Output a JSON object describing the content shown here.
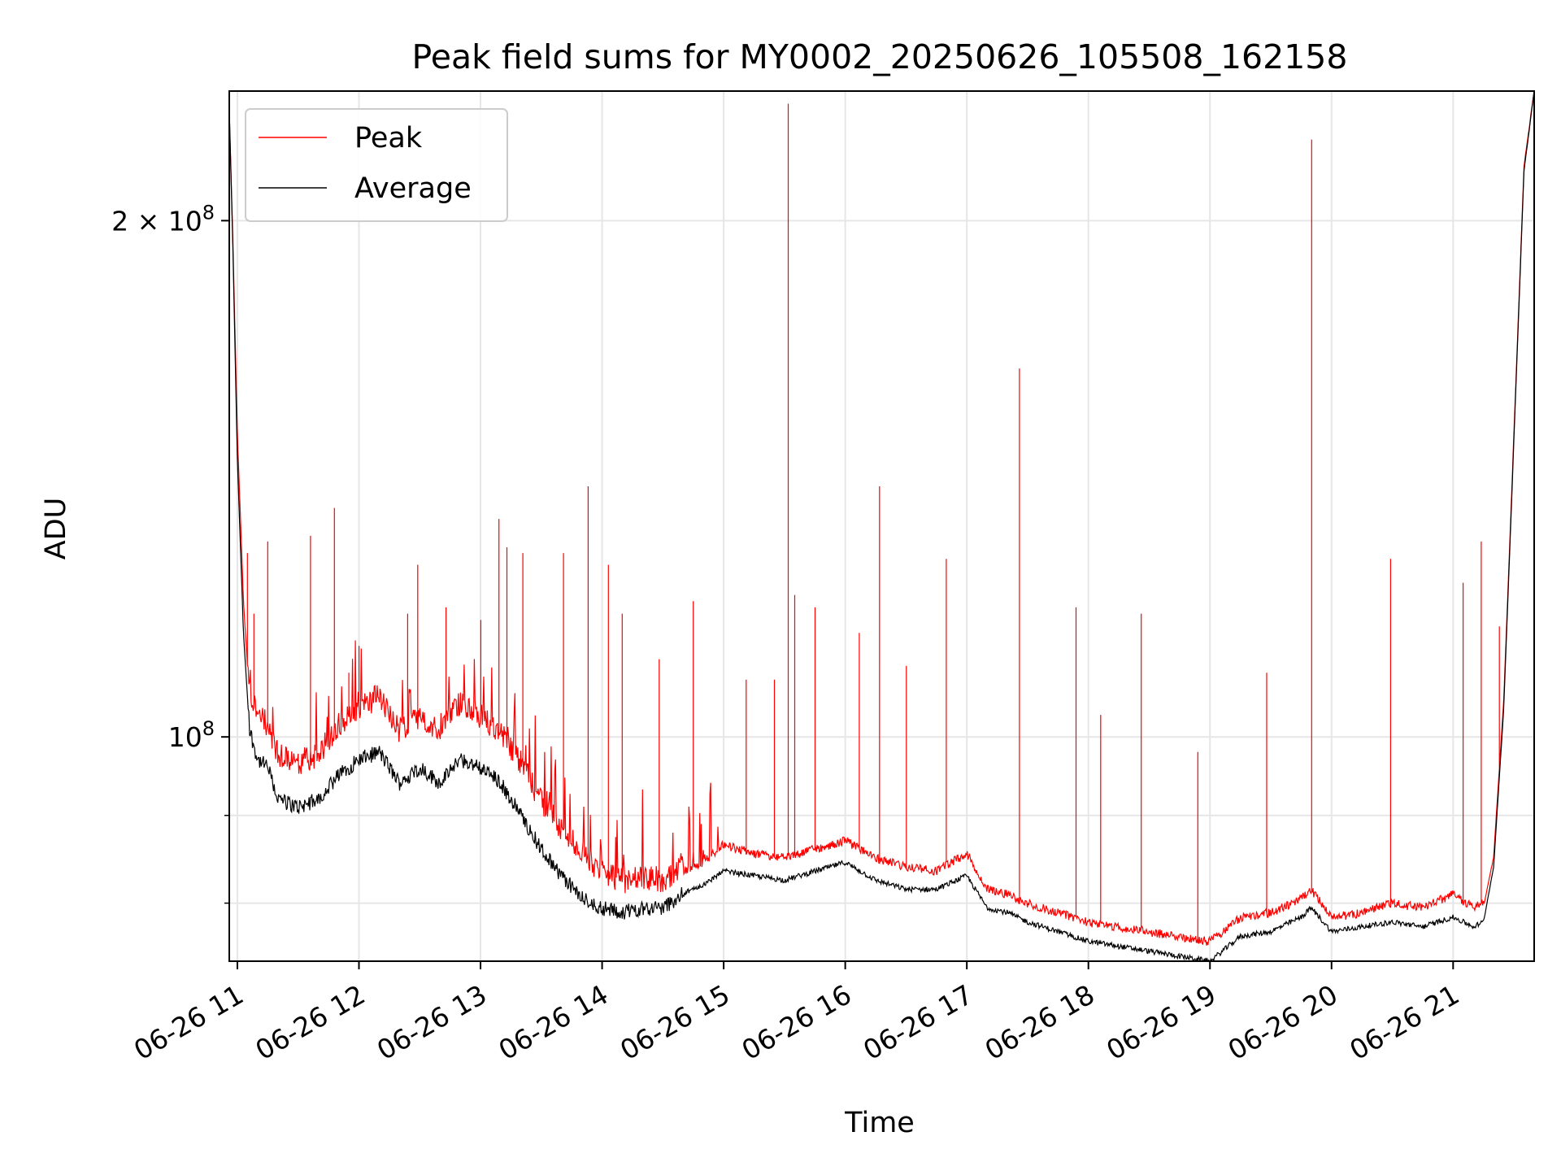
{
  "chart_data": {
    "type": "line",
    "title": "Peak field sums for MY0002_20250626_105508_162158",
    "xlabel": "Time",
    "ylabel": "ADU",
    "x_axis": {
      "kind": "time",
      "range": [
        "06-26 10:56",
        "06-26 21:40"
      ],
      "ticks": [
        "06-26 11",
        "06-26 12",
        "06-26 13",
        "06-26 14",
        "06-26 15",
        "06-26 16",
        "06-26 17",
        "06-26 18",
        "06-26 19",
        "06-26 20",
        "06-26 21"
      ]
    },
    "y_axis": {
      "scale": "log",
      "range": [
        74000000,
        238000000
      ],
      "major_ticks": [
        {
          "value": 100000000,
          "mantissa": "",
          "exponent": "8",
          "label": "10^8"
        },
        {
          "value": 200000000,
          "mantissa": "2",
          "exponent": "8",
          "label": "2 × 10^8"
        }
      ],
      "minor_ticks": [
        60000000,
        70000000,
        80000000,
        90000000,
        100000000,
        200000000
      ]
    },
    "grid": true,
    "legend": {
      "placement": "upper-left",
      "entries": [
        "Peak",
        "Average"
      ]
    },
    "series": [
      {
        "name": "Peak",
        "color": "#ff0000",
        "time": [
          "10:56",
          "10:58",
          "11:00",
          "11:03",
          "11:06",
          "11:10",
          "11:15",
          "11:20",
          "11:30",
          "11:40",
          "11:50",
          "12:00",
          "12:10",
          "12:20",
          "12:30",
          "12:40",
          "12:50",
          "13:00",
          "13:10",
          "13:20",
          "13:30",
          "13:40",
          "13:50",
          "14:00",
          "14:10",
          "14:20",
          "14:30",
          "14:40",
          "14:50",
          "15:00",
          "15:15",
          "15:30",
          "15:45",
          "16:00",
          "16:15",
          "16:30",
          "16:45",
          "17:00",
          "17:10",
          "17:20",
          "17:30",
          "17:45",
          "18:00",
          "18:15",
          "18:30",
          "18:45",
          "19:00",
          "19:15",
          "19:30",
          "19:45",
          "19:50",
          "20:00",
          "20:15",
          "20:30",
          "20:45",
          "21:00",
          "21:10",
          "21:15",
          "21:20",
          "21:25",
          "21:30",
          "21:35",
          "21:40"
        ],
        "values": [
          232000000,
          190000000,
          150000000,
          120000000,
          105000000,
          101000000,
          100000000,
          96000000,
          95000000,
          96000000,
          100000000,
          102000000,
          104000000,
          99000000,
          101000000,
          99000000,
          103000000,
          101000000,
          99000000,
          95000000,
          90000000,
          87000000,
          84000000,
          82000000,
          81000000,
          81500000,
          81000000,
          83000000,
          84000000,
          86000000,
          85000000,
          84500000,
          85500000,
          86500000,
          84500000,
          83500000,
          83000000,
          85000000,
          81000000,
          80500000,
          79500000,
          78500000,
          77500000,
          77000000,
          76500000,
          76000000,
          75500000,
          78000000,
          78500000,
          80000000,
          81000000,
          78000000,
          78500000,
          79500000,
          79000000,
          80500000,
          79000000,
          79500000,
          85000000,
          105000000,
          150000000,
          215000000,
          238000000
        ],
        "spikes": [
          {
            "time": "11:05",
            "value": 128000000
          },
          {
            "time": "11:08",
            "value": 118000000
          },
          {
            "time": "11:15",
            "value": 130000000
          },
          {
            "time": "11:36",
            "value": 131000000
          },
          {
            "time": "11:48",
            "value": 136000000
          },
          {
            "time": "11:55",
            "value": 109000000
          },
          {
            "time": "12:00",
            "value": 113000000
          },
          {
            "time": "12:24",
            "value": 118000000
          },
          {
            "time": "12:29",
            "value": 126000000
          },
          {
            "time": "12:43",
            "value": 119000000
          },
          {
            "time": "13:00",
            "value": 117000000
          },
          {
            "time": "13:09",
            "value": 134000000
          },
          {
            "time": "13:13",
            "value": 129000000
          },
          {
            "time": "13:21",
            "value": 128000000
          },
          {
            "time": "13:41",
            "value": 128000000
          },
          {
            "time": "13:53",
            "value": 140000000
          },
          {
            "time": "14:03",
            "value": 126000000
          },
          {
            "time": "14:10",
            "value": 118000000
          },
          {
            "time": "14:28",
            "value": 111000000
          },
          {
            "time": "14:45",
            "value": 120000000
          },
          {
            "time": "15:11",
            "value": 108000000
          },
          {
            "time": "15:25",
            "value": 108000000
          },
          {
            "time": "15:32",
            "value": 234000000
          },
          {
            "time": "15:35",
            "value": 121000000
          },
          {
            "time": "15:45",
            "value": 119000000
          },
          {
            "time": "16:07",
            "value": 115000000
          },
          {
            "time": "16:17",
            "value": 140000000
          },
          {
            "time": "16:30",
            "value": 110000000
          },
          {
            "time": "16:50",
            "value": 127000000
          },
          {
            "time": "17:26",
            "value": 164000000
          },
          {
            "time": "17:54",
            "value": 119000000
          },
          {
            "time": "18:06",
            "value": 103000000
          },
          {
            "time": "18:26",
            "value": 118000000
          },
          {
            "time": "18:54",
            "value": 98000000
          },
          {
            "time": "19:28",
            "value": 109000000
          },
          {
            "time": "19:50",
            "value": 223000000
          },
          {
            "time": "20:29",
            "value": 127000000
          },
          {
            "time": "21:05",
            "value": 123000000
          },
          {
            "time": "21:14",
            "value": 130000000
          },
          {
            "time": "21:23",
            "value": 116000000
          }
        ]
      },
      {
        "name": "Average",
        "color": "#000000",
        "time": [
          "10:56",
          "10:58",
          "11:00",
          "11:03",
          "11:06",
          "11:10",
          "11:15",
          "11:20",
          "11:30",
          "11:40",
          "11:50",
          "12:00",
          "12:10",
          "12:20",
          "12:30",
          "12:40",
          "12:50",
          "13:00",
          "13:10",
          "13:20",
          "13:30",
          "13:40",
          "13:50",
          "14:00",
          "14:10",
          "14:20",
          "14:30",
          "14:40",
          "14:50",
          "15:00",
          "15:15",
          "15:30",
          "15:45",
          "16:00",
          "16:15",
          "16:30",
          "16:45",
          "17:00",
          "17:10",
          "17:20",
          "17:30",
          "17:45",
          "18:00",
          "18:15",
          "18:30",
          "18:45",
          "19:00",
          "19:15",
          "19:30",
          "19:45",
          "19:50",
          "20:00",
          "20:15",
          "20:30",
          "20:45",
          "21:00",
          "21:10",
          "21:15",
          "21:20",
          "21:25",
          "21:30",
          "21:35",
          "21:40"
        ],
        "values": [
          232000000,
          188000000,
          145000000,
          115000000,
          101000000,
          97000000,
          96000000,
          92000000,
          91000000,
          92000000,
          95000000,
          97000000,
          98000000,
          94000000,
          96000000,
          94000000,
          97000000,
          96000000,
          94000000,
          90000000,
          86000000,
          83000000,
          80500000,
          79500000,
          79000000,
          79500000,
          79500000,
          81000000,
          82000000,
          83500000,
          83000000,
          82500000,
          83500000,
          84500000,
          82500000,
          81500000,
          81500000,
          83000000,
          79500000,
          79000000,
          78000000,
          77000000,
          76000000,
          75500000,
          75000000,
          74500000,
          74000000,
          76500000,
          77000000,
          78500000,
          79500000,
          77000000,
          77500000,
          78000000,
          77500000,
          78500000,
          77500000,
          78000000,
          84000000,
          104000000,
          149000000,
          214000000,
          238000000
        ]
      }
    ]
  }
}
